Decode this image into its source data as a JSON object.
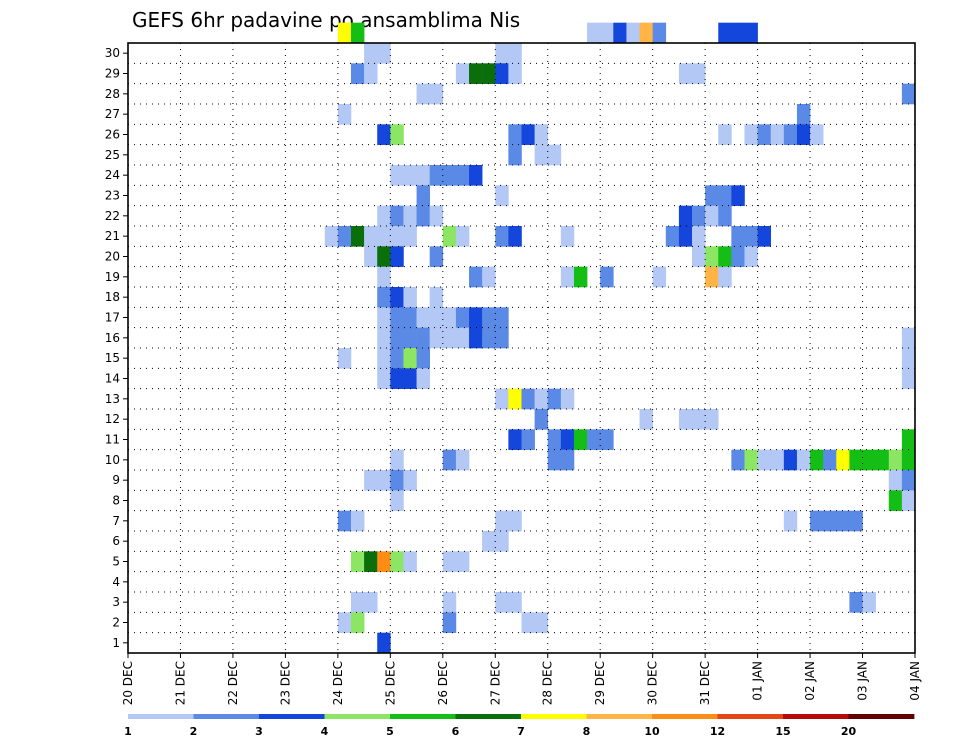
{
  "chart_data": {
    "type": "heatmap",
    "title": "GEFS 6hr padavine po ansamblima Nis",
    "x_tick_labels": [
      "20 DEC",
      "21 DEC",
      "22 DEC",
      "23 DEC",
      "24 DEC",
      "25 DEC",
      "26 DEC",
      "27 DEC",
      "28 DEC",
      "29 DEC",
      "30 DEC",
      "31 DEC",
      "01 JAN",
      "02 JAN",
      "03 JAN",
      "04 JAN"
    ],
    "y_tick_labels": [
      "1",
      "2",
      "3",
      "4",
      "5",
      "6",
      "7",
      "8",
      "9",
      "10",
      "11",
      "12",
      "13",
      "14",
      "15",
      "16",
      "17",
      "18",
      "19",
      "20",
      "21",
      "22",
      "23",
      "24",
      "25",
      "26",
      "27",
      "28",
      "29",
      "30"
    ],
    "x_range_hours": [
      0,
      360
    ],
    "step_hours": 6,
    "y_range": [
      0,
      30
    ],
    "grid": true,
    "colorbar": {
      "levels": [
        "1",
        "2",
        "3",
        "4",
        "5",
        "6",
        "7",
        "8",
        "10",
        "12",
        "15",
        "20"
      ],
      "colors": [
        "#b4c8f5",
        "#5a8ae6",
        "#1446dc",
        "#8ce664",
        "#14be14",
        "#0a6e0a",
        "#ffff00",
        "#ffb446",
        "#ff8c14",
        "#e64614",
        "#b40a0a",
        "#640000"
      ]
    },
    "cells": [
      {
        "m": 30,
        "t": [
          [
            24.0,
            7
          ],
          [
            24.25,
            5
          ],
          [
            28.75,
            1
          ],
          [
            29.0,
            1
          ],
          [
            29.25,
            3
          ],
          [
            29.5,
            1
          ],
          [
            29.75,
            8
          ],
          [
            30.0,
            2
          ],
          [
            31.25,
            3
          ],
          [
            31.5,
            3
          ],
          [
            31.75,
            3
          ]
        ]
      },
      {
        "m": 29,
        "t": [
          [
            24.5,
            1
          ],
          [
            24.75,
            1
          ],
          [
            27.0,
            1
          ],
          [
            27.25,
            1
          ],
          [
            35.0,
            1
          ]
        ]
      },
      {
        "m": 28,
        "t": [
          [
            24.25,
            2
          ],
          [
            24.5,
            1
          ],
          [
            26.25,
            1
          ],
          [
            26.5,
            6
          ],
          [
            26.75,
            6
          ],
          [
            27.0,
            3
          ],
          [
            27.25,
            1
          ],
          [
            30.5,
            1
          ],
          [
            30.75,
            1
          ]
        ]
      },
      {
        "m": 27,
        "t": [
          [
            25.5,
            1
          ],
          [
            25.75,
            1
          ],
          [
            34.75,
            2
          ]
        ]
      },
      {
        "m": 26,
        "t": [
          [
            24.0,
            1
          ],
          [
            32.75,
            2
          ]
        ]
      },
      {
        "m": 25,
        "t": [
          [
            24.75,
            3
          ],
          [
            25.0,
            4
          ],
          [
            27.25,
            2
          ],
          [
            27.5,
            3
          ],
          [
            27.75,
            1
          ],
          [
            31.25,
            1
          ],
          [
            31.75,
            1
          ],
          [
            32.0,
            2
          ],
          [
            32.25,
            1
          ],
          [
            32.5,
            2
          ],
          [
            32.75,
            3
          ],
          [
            33.0,
            1
          ]
        ]
      },
      {
        "m": 24,
        "t": [
          [
            27.25,
            2
          ],
          [
            27.75,
            1
          ],
          [
            28.0,
            1
          ]
        ]
      },
      {
        "m": 23,
        "t": [
          [
            25.0,
            1
          ],
          [
            25.25,
            1
          ],
          [
            25.5,
            1
          ],
          [
            25.75,
            2
          ],
          [
            26.0,
            2
          ],
          [
            26.25,
            2
          ],
          [
            26.5,
            3
          ]
        ]
      },
      {
        "m": 22,
        "t": [
          [
            25.5,
            2
          ],
          [
            27.0,
            1
          ],
          [
            31.0,
            2
          ],
          [
            31.25,
            2
          ],
          [
            31.5,
            3
          ]
        ]
      },
      {
        "m": 21,
        "t": [
          [
            24.75,
            1
          ],
          [
            25.0,
            2
          ],
          [
            25.25,
            1
          ],
          [
            25.5,
            2
          ],
          [
            25.75,
            1
          ],
          [
            30.5,
            3
          ],
          [
            30.75,
            2
          ],
          [
            31.0,
            1
          ],
          [
            31.25,
            2
          ]
        ]
      },
      {
        "m": 20,
        "t": [
          [
            23.75,
            1
          ],
          [
            24.0,
            2
          ],
          [
            24.25,
            6
          ],
          [
            24.5,
            1
          ],
          [
            24.75,
            1
          ],
          [
            25.0,
            1
          ],
          [
            25.25,
            1
          ],
          [
            26.0,
            4
          ],
          [
            26.25,
            1
          ],
          [
            27.0,
            2
          ],
          [
            27.25,
            3
          ],
          [
            28.25,
            1
          ],
          [
            30.25,
            2
          ],
          [
            30.5,
            3
          ],
          [
            30.75,
            1
          ],
          [
            31.5,
            2
          ],
          [
            31.75,
            2
          ],
          [
            32.0,
            3
          ]
        ]
      },
      {
        "m": 19,
        "t": [
          [
            24.5,
            1
          ],
          [
            24.75,
            6
          ],
          [
            25.0,
            3
          ],
          [
            25.75,
            2
          ],
          [
            30.75,
            1
          ],
          [
            31.0,
            4
          ],
          [
            31.25,
            5
          ],
          [
            31.5,
            2
          ],
          [
            31.75,
            1
          ]
        ]
      },
      {
        "m": 18,
        "t": [
          [
            24.75,
            1
          ],
          [
            26.5,
            2
          ],
          [
            26.75,
            1
          ],
          [
            28.25,
            1
          ],
          [
            28.5,
            5
          ],
          [
            29.0,
            2
          ],
          [
            30.0,
            1
          ],
          [
            31.0,
            8
          ],
          [
            31.25,
            1
          ]
        ]
      },
      {
        "m": 17,
        "t": [
          [
            24.75,
            2
          ],
          [
            25.0,
            3
          ],
          [
            25.25,
            1
          ],
          [
            25.75,
            1
          ]
        ]
      },
      {
        "m": 16,
        "t": [
          [
            24.75,
            1
          ],
          [
            25.0,
            2
          ],
          [
            25.25,
            2
          ],
          [
            25.5,
            1
          ],
          [
            25.75,
            1
          ],
          [
            26.0,
            1
          ],
          [
            26.25,
            2
          ],
          [
            26.5,
            3
          ],
          [
            26.75,
            2
          ],
          [
            27.0,
            2
          ]
        ]
      },
      {
        "m": 15,
        "t": [
          [
            24.75,
            1
          ],
          [
            25.0,
            2
          ],
          [
            25.25,
            2
          ],
          [
            25.5,
            2
          ],
          [
            25.75,
            1
          ],
          [
            26.0,
            1
          ],
          [
            26.25,
            1
          ],
          [
            26.5,
            3
          ],
          [
            26.75,
            2
          ],
          [
            27.0,
            2
          ],
          [
            34.75,
            1
          ]
        ]
      },
      {
        "m": 14,
        "t": [
          [
            24.0,
            1
          ],
          [
            24.75,
            1
          ],
          [
            25.0,
            2
          ],
          [
            25.25,
            4
          ],
          [
            25.5,
            2
          ],
          [
            34.75,
            1
          ]
        ]
      },
      {
        "m": 13,
        "t": [
          [
            24.75,
            1
          ],
          [
            25.0,
            3
          ],
          [
            25.25,
            3
          ],
          [
            25.5,
            1
          ],
          [
            34.75,
            1
          ]
        ]
      },
      {
        "m": 12,
        "t": [
          [
            27.0,
            1
          ],
          [
            27.25,
            7
          ],
          [
            27.5,
            2
          ],
          [
            27.75,
            1
          ],
          [
            28.0,
            2
          ],
          [
            28.25,
            1
          ]
        ]
      },
      {
        "m": 11,
        "t": [
          [
            27.75,
            2
          ],
          [
            29.75,
            1
          ],
          [
            30.5,
            1
          ],
          [
            30.75,
            1
          ],
          [
            31.0,
            1
          ]
        ]
      },
      {
        "m": 10,
        "t": [
          [
            27.25,
            3
          ],
          [
            27.5,
            2
          ],
          [
            28.0,
            2
          ],
          [
            28.25,
            3
          ],
          [
            28.5,
            5
          ],
          [
            28.75,
            2
          ],
          [
            29.0,
            2
          ],
          [
            34.75,
            5
          ],
          [
            35.25,
            3
          ]
        ]
      },
      {
        "m": 9,
        "t": [
          [
            25.0,
            1
          ],
          [
            26.0,
            2
          ],
          [
            26.25,
            1
          ],
          [
            28.0,
            2
          ],
          [
            28.25,
            2
          ],
          [
            31.5,
            2
          ],
          [
            31.75,
            4
          ],
          [
            32.0,
            1
          ],
          [
            32.25,
            1
          ],
          [
            32.5,
            3
          ],
          [
            32.75,
            1
          ],
          [
            33.0,
            5
          ],
          [
            33.25,
            2
          ],
          [
            33.5,
            7
          ],
          [
            33.75,
            5
          ],
          [
            34.0,
            5
          ],
          [
            34.25,
            5
          ],
          [
            34.5,
            4
          ],
          [
            34.75,
            5
          ],
          [
            35.0,
            4
          ]
        ]
      },
      {
        "m": 8,
        "t": [
          [
            24.5,
            1
          ],
          [
            24.75,
            1
          ],
          [
            25.0,
            2
          ],
          [
            25.25,
            1
          ],
          [
            34.5,
            1
          ],
          [
            34.75,
            2
          ],
          [
            35.0,
            1
          ]
        ]
      },
      {
        "m": 7,
        "t": [
          [
            25.0,
            1
          ],
          [
            34.5,
            5
          ],
          [
            34.75,
            1
          ],
          [
            35.0,
            1
          ]
        ]
      },
      {
        "m": 6,
        "t": [
          [
            24.0,
            2
          ],
          [
            24.25,
            1
          ],
          [
            27.0,
            1
          ],
          [
            27.25,
            1
          ],
          [
            32.5,
            1
          ],
          [
            33.0,
            2
          ],
          [
            33.25,
            2
          ],
          [
            33.5,
            2
          ],
          [
            33.75,
            2
          ]
        ]
      },
      {
        "m": 5,
        "t": [
          [
            26.75,
            1
          ],
          [
            27.0,
            1
          ]
        ]
      },
      {
        "m": 4,
        "t": [
          [
            24.25,
            4
          ],
          [
            24.5,
            6
          ],
          [
            24.75,
            9
          ],
          [
            25.0,
            4
          ],
          [
            25.25,
            1
          ],
          [
            26.0,
            1
          ],
          [
            26.25,
            1
          ]
        ]
      },
      {
        "m": 2,
        "t": [
          [
            24.25,
            1
          ],
          [
            24.5,
            1
          ],
          [
            26.0,
            1
          ],
          [
            27.0,
            1
          ],
          [
            27.25,
            1
          ],
          [
            33.75,
            2
          ],
          [
            34.0,
            1
          ]
        ]
      },
      {
        "m": 1,
        "t": [
          [
            24.0,
            1
          ],
          [
            24.25,
            4
          ],
          [
            26.0,
            2
          ],
          [
            27.5,
            1
          ],
          [
            27.75,
            1
          ]
        ]
      },
      {
        "m": 0,
        "t": [
          [
            24.75,
            3
          ]
        ]
      }
    ]
  }
}
